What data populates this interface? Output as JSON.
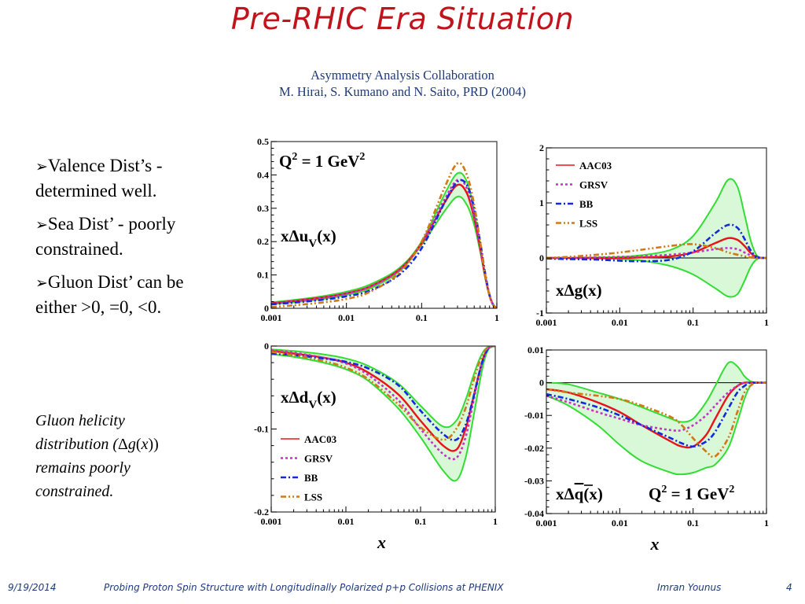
{
  "slide": {
    "title": "Pre-RHIC Era Situation",
    "subtitle_line1": "Asymmetry Analysis Collaboration",
    "subtitle_line2": "M. Hirai, S. Kumano and N. Saito, PRD (2004)",
    "bullets": [
      {
        "icon": "arrow-bullet-icon",
        "line1": "Valence Dist’s -",
        "line2": "determined well."
      },
      {
        "icon": "arrow-bullet-icon",
        "line1": "Sea Dist’ - poorly",
        "line2": "constrained."
      },
      {
        "icon": "arrow-bullet-icon",
        "line1": "Gluon Dist’ can be",
        "line2": "either >0, =0, <0."
      }
    ],
    "note": {
      "line1": "Gluon helicity",
      "line2_pre": "distribution (",
      "line2_delta": "Δ",
      "line2_g": "g",
      "line2_open": "(",
      "line2_x": "x",
      "line2_close": "))",
      "line3": "remains poorly",
      "line4": "constrained."
    },
    "footer": {
      "date": "9/19/2014",
      "center": "Probing Proton Spin Structure with Longitudinally Polarized p+p Collisions at PHENIX",
      "author": "Imran Younus",
      "page": "4"
    }
  },
  "colors": {
    "title": "#c0141c",
    "subtitle": "#1f3a7a",
    "AAC03": "#e8141c",
    "GRSV": "#c832c8",
    "BB": "#1428dc",
    "LSS": "#d27814",
    "band_line": "#33dd33",
    "band_fill": "#d8f8d8"
  },
  "chart_data": [
    {
      "id": "uv",
      "type": "line",
      "title": "xΔu_V(x)",
      "label_main": "xΔu",
      "label_sub": "V",
      "label_tail": "(x)",
      "annotation": "Q² = 1 GeV²",
      "annotation_base": "Q",
      "annotation_mid": " = 1 GeV",
      "annotation_sup": "2",
      "xscale": "log",
      "xlim": [
        0.001,
        1
      ],
      "ylim": [
        0,
        0.5
      ],
      "xticks": [
        "0.001",
        "0.01",
        "0.1",
        "1"
      ],
      "yticks": [
        {
          "v": 0,
          "t": "0"
        },
        {
          "v": 0.1,
          "t": "0.1"
        },
        {
          "v": 0.2,
          "t": "0.2"
        },
        {
          "v": 0.3,
          "t": "0.3"
        },
        {
          "v": 0.4,
          "t": "0.4"
        },
        {
          "v": 0.5,
          "t": "0.5"
        }
      ],
      "xlabel": "",
      "x": [
        0.001,
        0.002,
        0.005,
        0.01,
        0.02,
        0.05,
        0.1,
        0.2,
        0.3,
        0.4,
        0.5,
        0.6,
        0.7,
        0.8,
        0.9,
        1.0
      ],
      "band_upper": [
        0.018,
        0.025,
        0.037,
        0.05,
        0.07,
        0.12,
        0.2,
        0.34,
        0.405,
        0.38,
        0.29,
        0.19,
        0.1,
        0.04,
        0.01,
        0
      ],
      "band_lower": [
        0.012,
        0.018,
        0.028,
        0.04,
        0.058,
        0.11,
        0.19,
        0.29,
        0.335,
        0.31,
        0.25,
        0.17,
        0.09,
        0.035,
        0.008,
        0
      ],
      "series": [
        {
          "name": "AAC03",
          "style": "solid",
          "values": [
            0.015,
            0.022,
            0.033,
            0.045,
            0.064,
            0.115,
            0.195,
            0.315,
            0.37,
            0.345,
            0.27,
            0.18,
            0.095,
            0.038,
            0.009,
            0
          ]
        },
        {
          "name": "GRSV",
          "style": "dot",
          "values": [
            0.014,
            0.021,
            0.032,
            0.044,
            0.063,
            0.113,
            0.195,
            0.325,
            0.385,
            0.36,
            0.28,
            0.185,
            0.097,
            0.038,
            0.009,
            0
          ]
        },
        {
          "name": "BB",
          "style": "dashdot",
          "values": [
            0.012,
            0.017,
            0.026,
            0.036,
            0.052,
            0.1,
            0.18,
            0.315,
            0.38,
            0.37,
            0.3,
            0.2,
            0.105,
            0.04,
            0.01,
            0
          ]
        },
        {
          "name": "LSS",
          "style": "dashdotdot",
          "values": [
            0.004,
            0.009,
            0.018,
            0.028,
            0.048,
            0.105,
            0.2,
            0.36,
            0.435,
            0.4,
            0.31,
            0.2,
            0.1,
            0.038,
            0.009,
            0
          ]
        }
      ]
    },
    {
      "id": "g",
      "type": "line",
      "title": "xΔg(x)",
      "label_main": "xΔg(x)",
      "xscale": "log",
      "xlim": [
        0.001,
        1
      ],
      "ylim": [
        -1,
        2
      ],
      "xticks": [
        "0.001",
        "0.01",
        "0.1",
        "1"
      ],
      "yticks": [
        {
          "v": -1,
          "t": "-1"
        },
        {
          "v": 0,
          "t": "0"
        },
        {
          "v": 1,
          "t": "1"
        },
        {
          "v": 2,
          "t": "2"
        }
      ],
      "xlabel": "",
      "legend": {
        "placement": "top-left",
        "entries": [
          "AAC03",
          "GRSV",
          "BB",
          "LSS"
        ]
      },
      "x": [
        0.001,
        0.002,
        0.005,
        0.01,
        0.02,
        0.05,
        0.1,
        0.2,
        0.3,
        0.4,
        0.5,
        0.6,
        0.7,
        0.8,
        1.0
      ],
      "band_upper": [
        0.0,
        0.0,
        0.01,
        0.02,
        0.05,
        0.15,
        0.4,
        1.0,
        1.42,
        1.3,
        0.8,
        0.35,
        0.1,
        0.01,
        0
      ],
      "band_lower": [
        0.0,
        0.0,
        -0.01,
        -0.02,
        -0.05,
        -0.15,
        -0.3,
        -0.55,
        -0.7,
        -0.66,
        -0.42,
        -0.18,
        -0.05,
        -0.005,
        0
      ],
      "series": [
        {
          "name": "AAC03",
          "style": "solid",
          "values": [
            0.0,
            0.0,
            0.0,
            0.0,
            0.01,
            0.03,
            0.1,
            0.27,
            0.36,
            0.33,
            0.22,
            0.1,
            0.03,
            0.005,
            0
          ]
        },
        {
          "name": "GRSV",
          "style": "dot",
          "values": [
            0.0,
            0.0,
            0.01,
            0.02,
            0.03,
            0.06,
            0.1,
            0.16,
            0.18,
            0.16,
            0.1,
            0.05,
            0.015,
            0.003,
            0
          ]
        },
        {
          "name": "BB",
          "style": "dashdot",
          "values": [
            -0.01,
            -0.02,
            -0.03,
            -0.05,
            -0.06,
            -0.03,
            0.12,
            0.45,
            0.6,
            0.55,
            0.35,
            0.15,
            0.04,
            0.005,
            0
          ]
        },
        {
          "name": "LSS",
          "style": "dashdotdot",
          "values": [
            0.0,
            0.02,
            0.06,
            0.1,
            0.15,
            0.22,
            0.25,
            0.18,
            0.1,
            0.06,
            0.03,
            0.01,
            0.003,
            0.0,
            0
          ]
        }
      ]
    },
    {
      "id": "dv",
      "type": "line",
      "title": "xΔd_V(x)",
      "label_main": "xΔd",
      "label_sub": "V",
      "label_tail": "(x)",
      "xscale": "log",
      "xlim": [
        0.001,
        1
      ],
      "ylim": [
        -0.2,
        0
      ],
      "xticks": [
        "0.001",
        "0.01",
        "0.1",
        "1"
      ],
      "yticks": [
        {
          "v": -0.2,
          "t": "-0.2"
        },
        {
          "v": -0.1,
          "t": "-0.1"
        },
        {
          "v": 0,
          "t": "0"
        }
      ],
      "xlabel": "x",
      "legend": {
        "placement": "bottom-left",
        "entries": [
          "AAC03",
          "GRSV",
          "BB",
          "LSS"
        ]
      },
      "x": [
        0.001,
        0.002,
        0.005,
        0.01,
        0.02,
        0.05,
        0.1,
        0.2,
        0.3,
        0.4,
        0.5,
        0.6,
        0.7,
        0.8,
        0.9,
        1.0
      ],
      "band_upper": [
        -0.004,
        -0.006,
        -0.01,
        -0.015,
        -0.024,
        -0.045,
        -0.072,
        -0.097,
        -0.09,
        -0.065,
        -0.038,
        -0.018,
        -0.006,
        -0.001,
        0,
        0
      ],
      "band_lower": [
        -0.01,
        -0.013,
        -0.02,
        -0.028,
        -0.042,
        -0.075,
        -0.11,
        -0.15,
        -0.162,
        -0.135,
        -0.09,
        -0.05,
        -0.02,
        -0.005,
        -0.001,
        0
      ],
      "series": [
        {
          "name": "AAC03",
          "style": "solid",
          "values": [
            -0.006,
            -0.009,
            -0.014,
            -0.02,
            -0.032,
            -0.058,
            -0.09,
            -0.12,
            -0.125,
            -0.1,
            -0.065,
            -0.035,
            -0.013,
            -0.003,
            0,
            0
          ]
        },
        {
          "name": "GRSV",
          "style": "dot",
          "values": [
            -0.005,
            -0.008,
            -0.014,
            -0.021,
            -0.035,
            -0.065,
            -0.1,
            -0.13,
            -0.135,
            -0.11,
            -0.07,
            -0.037,
            -0.014,
            -0.003,
            0,
            0
          ]
        },
        {
          "name": "BB",
          "style": "dashdot",
          "values": [
            -0.009,
            -0.011,
            -0.015,
            -0.019,
            -0.027,
            -0.047,
            -0.078,
            -0.106,
            -0.113,
            -0.095,
            -0.065,
            -0.035,
            -0.014,
            -0.003,
            0,
            0
          ]
        },
        {
          "name": "LSS",
          "style": "dashdotdot",
          "values": [
            -0.007,
            -0.011,
            -0.018,
            -0.026,
            -0.04,
            -0.07,
            -0.098,
            -0.113,
            -0.1,
            -0.075,
            -0.045,
            -0.022,
            -0.008,
            -0.002,
            0,
            0
          ]
        }
      ]
    },
    {
      "id": "qbar",
      "type": "line",
      "title": "xΔq̄(x)",
      "label_main": "xΔ",
      "label_q": "q",
      "label_tail": "(x)",
      "annotation": "Q² = 1 GeV²",
      "annotation_base": "Q",
      "annotation_mid": " = 1 GeV",
      "annotation_sup": "2",
      "xscale": "log",
      "xlim": [
        0.001,
        1
      ],
      "ylim": [
        -0.04,
        0.01
      ],
      "xticks": [
        "0.001",
        "0.01",
        "0.1",
        "1"
      ],
      "yticks": [
        {
          "v": -0.04,
          "t": "-0.04"
        },
        {
          "v": -0.03,
          "t": "-0.03"
        },
        {
          "v": -0.02,
          "t": "-0.02"
        },
        {
          "v": -0.01,
          "t": "-0.01"
        },
        {
          "v": 0,
          "t": "0"
        },
        {
          "v": 0.01,
          "t": "0.01"
        }
      ],
      "xlabel": "x",
      "x": [
        0.001,
        0.002,
        0.005,
        0.01,
        0.02,
        0.05,
        0.07,
        0.1,
        0.15,
        0.2,
        0.3,
        0.4,
        0.5,
        0.6,
        0.7,
        0.8,
        1.0
      ],
      "band_upper": [
        0.0,
        -0.0005,
        -0.003,
        -0.005,
        -0.0075,
        -0.011,
        -0.012,
        -0.011,
        -0.006,
        -0.001,
        0.006,
        0.005,
        0.002,
        0.0005,
        0,
        0,
        0
      ],
      "band_lower": [
        -0.004,
        -0.007,
        -0.013,
        -0.019,
        -0.024,
        -0.0275,
        -0.028,
        -0.0275,
        -0.026,
        -0.025,
        -0.02,
        -0.012,
        -0.005,
        -0.001,
        0,
        0,
        0
      ],
      "series": [
        {
          "name": "AAC03",
          "style": "solid",
          "values": [
            -0.002,
            -0.003,
            -0.006,
            -0.009,
            -0.013,
            -0.018,
            -0.0195,
            -0.0195,
            -0.016,
            -0.011,
            -0.004,
            -0.001,
            0,
            0,
            0,
            0,
            0
          ]
        },
        {
          "name": "GRSV",
          "style": "dot",
          "values": [
            -0.004,
            -0.006,
            -0.009,
            -0.011,
            -0.013,
            -0.0145,
            -0.0145,
            -0.013,
            -0.01,
            -0.007,
            -0.003,
            -0.001,
            0,
            0,
            0,
            0,
            0
          ]
        },
        {
          "name": "BB",
          "style": "dashdot",
          "values": [
            -0.0035,
            -0.005,
            -0.0075,
            -0.01,
            -0.013,
            -0.017,
            -0.0185,
            -0.0195,
            -0.018,
            -0.015,
            -0.008,
            -0.003,
            -0.001,
            0,
            0,
            0,
            0
          ]
        },
        {
          "name": "LSS",
          "style": "dashdotdot",
          "values": [
            -0.002,
            -0.003,
            -0.004,
            -0.005,
            -0.007,
            -0.0105,
            -0.013,
            -0.017,
            -0.021,
            -0.0225,
            -0.017,
            -0.009,
            -0.003,
            -0.001,
            0,
            0,
            0
          ]
        }
      ]
    }
  ]
}
